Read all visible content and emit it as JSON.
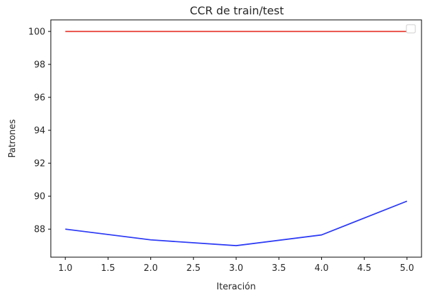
{
  "chart_data": {
    "type": "line",
    "title": "CCR de train/test",
    "xlabel": "Iteración",
    "ylabel": "Patrones",
    "x": [
      1,
      2,
      3,
      4,
      5
    ],
    "series": [
      {
        "values": [
          100,
          100,
          100,
          100,
          100
        ],
        "color": "#e8453c"
      },
      {
        "values": [
          88.0,
          87.35,
          87.0,
          87.65,
          89.7
        ],
        "color": "#2e3cf5"
      }
    ],
    "xlim": [
      0.83,
      5.17
    ],
    "ylim": [
      86.3,
      100.7
    ],
    "xticks": [
      "1.0",
      "1.5",
      "2.0",
      "2.5",
      "3.0",
      "3.5",
      "4.0",
      "4.5",
      "5.0"
    ],
    "yticks": [
      "88",
      "90",
      "92",
      "94",
      "96",
      "98",
      "100"
    ],
    "grid": false,
    "legend": "top-right"
  }
}
